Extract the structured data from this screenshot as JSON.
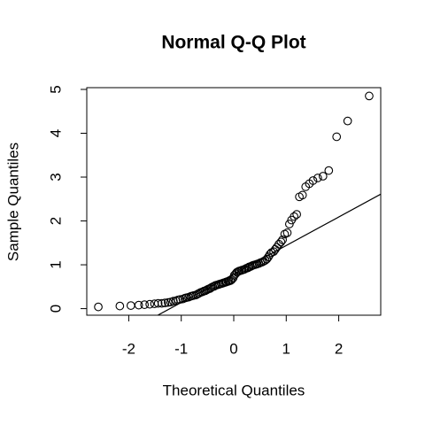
{
  "chart_data": {
    "type": "scatter",
    "title": "Normal Q-Q Plot",
    "x_label": "Theoretical Quantiles",
    "y_label": "Sample Quantiles",
    "xlim": [
      -2.8,
      2.8
    ],
    "ylim": [
      -0.15,
      5.04
    ],
    "xticks": [
      -2,
      -1,
      0,
      1,
      2
    ],
    "yticks": [
      0,
      1,
      2,
      3,
      4,
      5
    ],
    "qqline": {
      "intercept": 0.79,
      "slope": 0.65
    },
    "series": [
      {
        "color": "#000000",
        "x": [
          -2.58,
          -2.17,
          -1.96,
          -1.81,
          -1.7,
          -1.6,
          -1.51,
          -1.44,
          -1.37,
          -1.31,
          -1.25,
          -1.2,
          -1.15,
          -1.1,
          -1.06,
          -1.02,
          -0.97,
          -0.93,
          -0.9,
          -0.86,
          -0.82,
          -0.79,
          -0.76,
          -0.72,
          -0.69,
          -0.66,
          -0.63,
          -0.6,
          -0.57,
          -0.54,
          -0.51,
          -0.48,
          -0.45,
          -0.43,
          -0.4,
          -0.37,
          -0.35,
          -0.32,
          -0.29,
          -0.27,
          -0.24,
          -0.21,
          -0.19,
          -0.16,
          -0.14,
          -0.11,
          -0.09,
          -0.06,
          -0.04,
          -0.01,
          0.01,
          0.04,
          0.06,
          0.09,
          0.11,
          0.14,
          0.16,
          0.19,
          0.21,
          0.24,
          0.27,
          0.29,
          0.32,
          0.35,
          0.37,
          0.4,
          0.43,
          0.45,
          0.48,
          0.51,
          0.54,
          0.57,
          0.6,
          0.63,
          0.66,
          0.69,
          0.72,
          0.76,
          0.79,
          0.82,
          0.86,
          0.9,
          0.93,
          0.97,
          1.02,
          1.06,
          1.1,
          1.15,
          1.2,
          1.25,
          1.31,
          1.37,
          1.44,
          1.51,
          1.6,
          1.7,
          1.81,
          1.96,
          2.17,
          2.58
        ],
        "values": [
          0.04,
          0.06,
          0.07,
          0.08,
          0.09,
          0.1,
          0.11,
          0.12,
          0.12,
          0.13,
          0.14,
          0.15,
          0.17,
          0.18,
          0.2,
          0.21,
          0.22,
          0.24,
          0.25,
          0.26,
          0.28,
          0.29,
          0.3,
          0.31,
          0.33,
          0.35,
          0.37,
          0.38,
          0.4,
          0.41,
          0.43,
          0.45,
          0.46,
          0.48,
          0.5,
          0.51,
          0.53,
          0.54,
          0.55,
          0.56,
          0.57,
          0.58,
          0.59,
          0.6,
          0.61,
          0.62,
          0.63,
          0.64,
          0.66,
          0.7,
          0.76,
          0.8,
          0.83,
          0.85,
          0.86,
          0.87,
          0.88,
          0.89,
          0.9,
          0.92,
          0.93,
          0.95,
          0.96,
          0.98,
          0.99,
          1.0,
          1.01,
          1.02,
          1.03,
          1.05,
          1.06,
          1.08,
          1.1,
          1.13,
          1.18,
          1.24,
          1.28,
          1.3,
          1.35,
          1.4,
          1.47,
          1.52,
          1.57,
          1.7,
          1.73,
          1.93,
          2.02,
          2.1,
          2.15,
          2.55,
          2.59,
          2.78,
          2.85,
          2.92,
          2.98,
          3.02,
          3.15,
          3.92,
          4.28,
          4.85
        ]
      }
    ]
  }
}
